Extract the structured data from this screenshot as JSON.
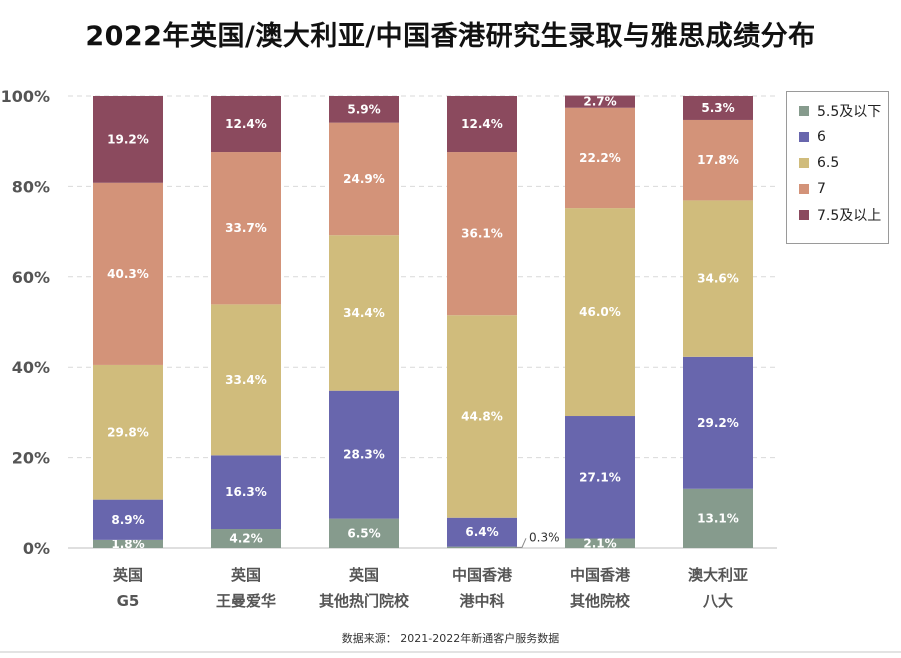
{
  "title": "2022年英国/澳大利亚/中国香港研究生录取与雅思成绩分布",
  "source": "数据来源： 2021-2022年新通客户服务数据",
  "chart_data": {
    "type": "bar",
    "stacked": true,
    "percent": true,
    "categories": [
      [
        "英国",
        "G5"
      ],
      [
        "英国",
        "王曼爱华"
      ],
      [
        "英国",
        "其他热门院校"
      ],
      [
        "中国香港",
        "港中科"
      ],
      [
        "中国香港",
        "其他院校"
      ],
      [
        "澳大利亚",
        "八大"
      ]
    ],
    "series": [
      {
        "name": "5.5及以下",
        "color": "#869b8d",
        "values": [
          1.8,
          4.2,
          6.5,
          0.3,
          2.1,
          13.1
        ]
      },
      {
        "name": "6",
        "color": "#6866ad",
        "values": [
          8.9,
          16.3,
          28.3,
          6.4,
          27.1,
          29.2
        ]
      },
      {
        "name": "6.5",
        "color": "#d0bc7c",
        "values": [
          29.8,
          33.4,
          34.4,
          44.8,
          46.0,
          34.6
        ]
      },
      {
        "name": "7",
        "color": "#d39379",
        "values": [
          40.3,
          33.7,
          24.9,
          36.1,
          22.2,
          17.8
        ]
      },
      {
        "name": "7.5及以上",
        "color": "#8b4a5e",
        "values": [
          19.2,
          12.4,
          5.9,
          12.4,
          2.7,
          5.3
        ]
      }
    ],
    "value_labels": [
      [
        "1.8%",
        "8.9%",
        "29.8%",
        "40.3%",
        "19.2%"
      ],
      [
        "4.2%",
        "16.3%",
        "33.4%",
        "33.7%",
        "12.4%"
      ],
      [
        "6.5%",
        "28.3%",
        "34.4%",
        "24.9%",
        "5.9%"
      ],
      [
        "0.3%",
        "6.4%",
        "44.8%",
        "36.1%",
        "12.4%"
      ],
      [
        "2.1%",
        "27.1%",
        "46.0%",
        "22.2%",
        "2.7%"
      ],
      [
        "13.1%",
        "29.2%",
        "34.6%",
        "17.8%",
        "5.3%"
      ]
    ],
    "ylim": [
      0,
      100
    ],
    "y_ticks": [
      "0%",
      "20%",
      "40%",
      "60%",
      "80%",
      "100%"
    ],
    "grid": true,
    "legend_position": "right-top",
    "label_colors": {
      "inside": "#ffffff",
      "outside": "#333333",
      "axis": "#555555"
    }
  }
}
